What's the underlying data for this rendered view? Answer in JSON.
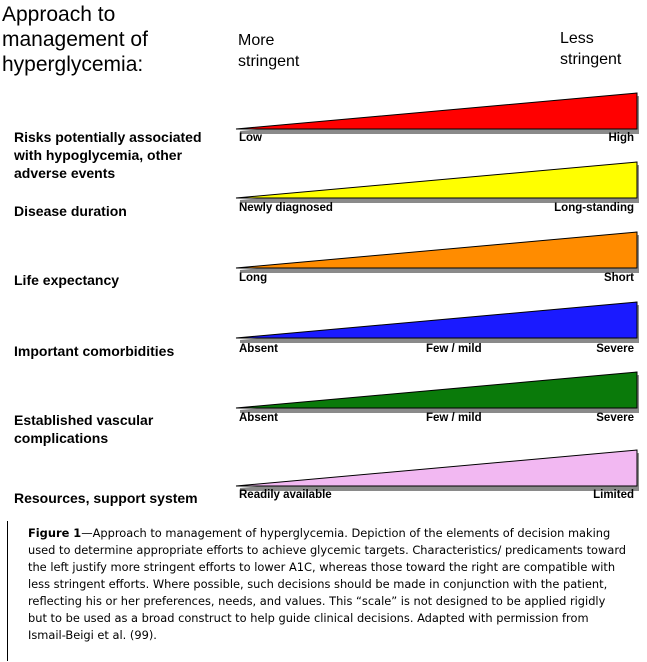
{
  "title": "Approach to management of hyperglycemia:",
  "columns": {
    "left": [
      "More",
      "stringent"
    ],
    "right": [
      "Less",
      "stringent"
    ]
  },
  "rows": [
    {
      "label": "Risks potentially associated with hypoglycemia, other adverse events",
      "color": "#ff0000",
      "poles": [
        "Low",
        "",
        "High"
      ]
    },
    {
      "label": "Disease duration",
      "color": "#ffff00",
      "poles": [
        "Newly diagnosed",
        "",
        "Long-standing"
      ]
    },
    {
      "label": "Life expectancy",
      "color": "#ff8c00",
      "poles": [
        "Long",
        "",
        "Short"
      ]
    },
    {
      "label": "Important comorbidities",
      "color": "#1a1aff",
      "poles": [
        "Absent",
        "Few / mild",
        "Severe"
      ]
    },
    {
      "label": "Established vascular complications",
      "color": "#0a7a0a",
      "poles": [
        "Absent",
        "Few / mild",
        "Severe"
      ]
    },
    {
      "label": "Resources, support system",
      "color": "#f2b8f2",
      "poles": [
        "Readily available",
        "",
        "Limited"
      ]
    }
  ],
  "caption": {
    "lead": "Figure 1",
    "text": "—Approach to management of hyperglycemia. Depiction of the elements of decision making used to determine appropriate efforts to achieve glycemic targets. Characteristics/ predicaments toward the left justify more stringent efforts to lower A1C, whereas those toward the right are compatible with less stringent efforts. Where possible, such decisions should be made in conjunction with the patient, reflecting his or her preferences, needs, and values. This “scale” is not designed to be applied rigidly but to be used as a broad construct to help guide clinical decisions. Adapted with permission from Ismail-Beigi et al. (99)."
  }
}
